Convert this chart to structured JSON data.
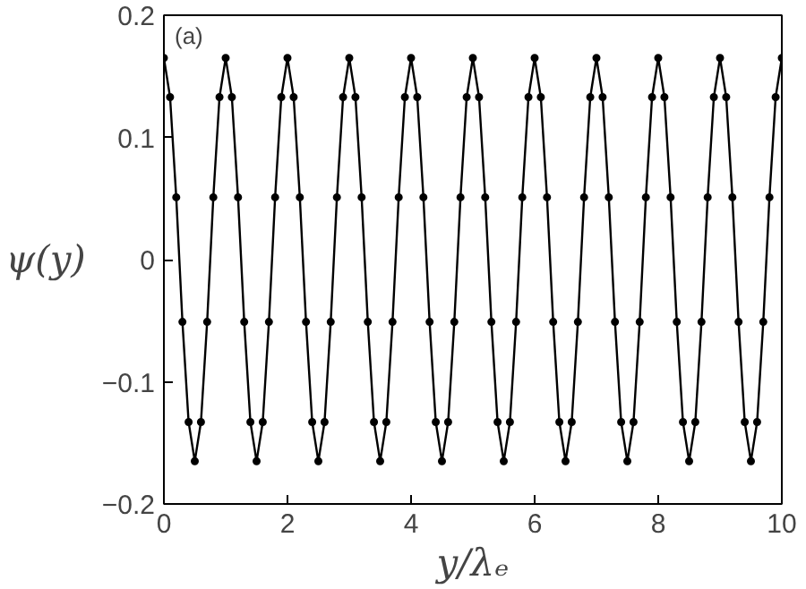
{
  "chart_data": {
    "type": "line",
    "xlabel": "y/λₑ",
    "ylabel": "ψ(y)",
    "annotations": [
      "(a)"
    ],
    "x": [
      0,
      0.1,
      0.2,
      0.3,
      0.4,
      0.5,
      0.6,
      0.7,
      0.8,
      0.9,
      1,
      1.1,
      1.2,
      1.3,
      1.4,
      1.5,
      1.6,
      1.7,
      1.8,
      1.9,
      2,
      2.1,
      2.2,
      2.3,
      2.4,
      2.5,
      2.6,
      2.7,
      2.8,
      2.9,
      3,
      3.1,
      3.2,
      3.3,
      3.4,
      3.5,
      3.6,
      3.7,
      3.8,
      3.9,
      4,
      4.1,
      4.2,
      4.3,
      4.4,
      4.5,
      4.6,
      4.7,
      4.8,
      4.9,
      5,
      5.1,
      5.2,
      5.3,
      5.4,
      5.5,
      5.6,
      5.7,
      5.8,
      5.9,
      6,
      6.1,
      6.2,
      6.3,
      6.4,
      6.5,
      6.6,
      6.7,
      6.8,
      6.9,
      7,
      7.1,
      7.2,
      7.3,
      7.4,
      7.5,
      7.6,
      7.7,
      7.8,
      7.9,
      8,
      8.1,
      8.2,
      8.3,
      8.4,
      8.5,
      8.6,
      8.7,
      8.8,
      8.9,
      9,
      9.1,
      9.2,
      9.3,
      9.4,
      9.5,
      9.6,
      9.7,
      9.8,
      9.9,
      10
    ],
    "series": [
      {
        "color": "#000000",
        "values": [
          0.165,
          0.133,
          0.051,
          -0.051,
          -0.133,
          -0.165,
          -0.133,
          -0.051,
          0.051,
          0.133,
          0.165,
          0.133,
          0.051,
          -0.051,
          -0.133,
          -0.165,
          -0.133,
          -0.051,
          0.051,
          0.133,
          0.165,
          0.133,
          0.051,
          -0.051,
          -0.133,
          -0.165,
          -0.133,
          -0.051,
          0.051,
          0.133,
          0.165,
          0.133,
          0.051,
          -0.051,
          -0.133,
          -0.165,
          -0.133,
          -0.051,
          0.051,
          0.133,
          0.165,
          0.133,
          0.051,
          -0.051,
          -0.133,
          -0.165,
          -0.133,
          -0.051,
          0.051,
          0.133,
          0.165,
          0.133,
          0.051,
          -0.051,
          -0.133,
          -0.165,
          -0.133,
          -0.051,
          0.051,
          0.133,
          0.165,
          0.133,
          0.051,
          -0.051,
          -0.133,
          -0.165,
          -0.133,
          -0.051,
          0.051,
          0.133,
          0.165,
          0.133,
          0.051,
          -0.051,
          -0.133,
          -0.165,
          -0.133,
          -0.051,
          0.051,
          0.133,
          0.165,
          0.133,
          0.051,
          -0.051,
          -0.133,
          -0.165,
          -0.133,
          -0.051,
          0.051,
          0.133,
          0.165,
          0.133,
          0.051,
          -0.051,
          -0.133,
          -0.165,
          -0.133,
          -0.051,
          0.051,
          0.133,
          0.165
        ]
      }
    ],
    "xlim": [
      0,
      10
    ],
    "ylim": [
      -0.2,
      0.2
    ],
    "xticks": [
      0,
      2,
      4,
      6,
      8,
      10
    ],
    "yticks": [
      -0.2,
      -0.1,
      0,
      0.1,
      0.2
    ],
    "marker": "circle",
    "line_style": "solid",
    "grid": false
  }
}
